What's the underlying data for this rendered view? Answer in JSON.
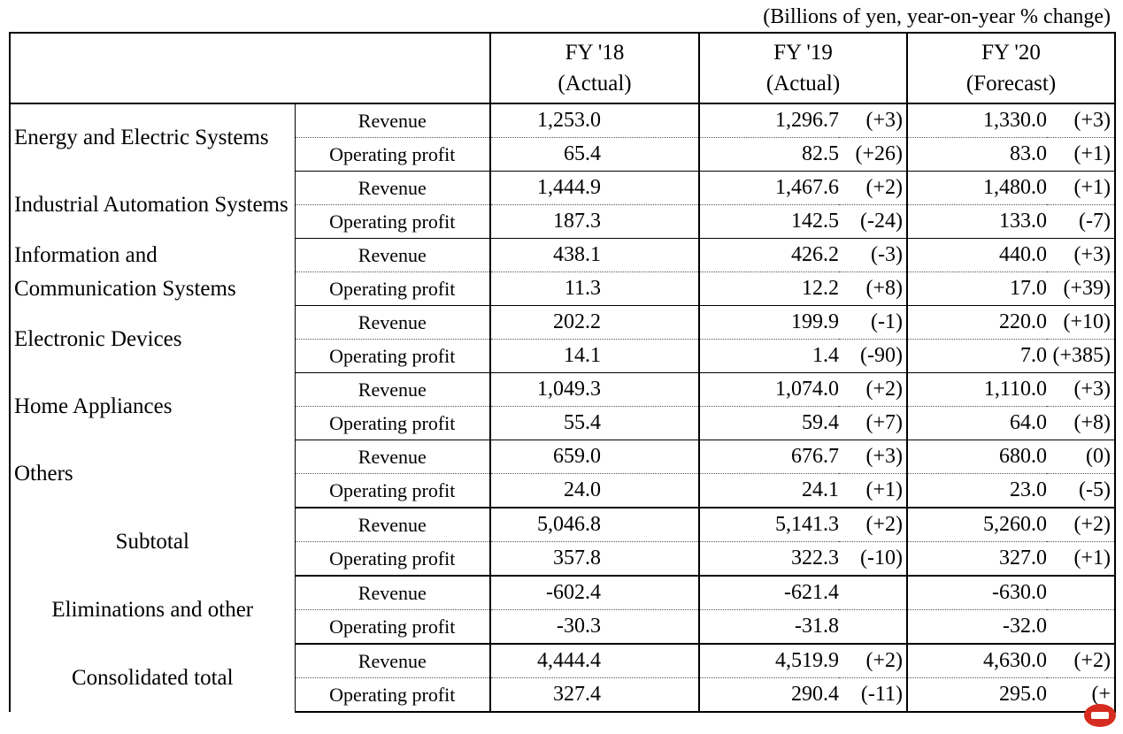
{
  "unit_note": "(Billions of yen, year-on-year % change)",
  "headers": [
    {
      "year": "FY '18",
      "kind": "(Actual)"
    },
    {
      "year": "FY '19",
      "kind": "(Actual)"
    },
    {
      "year": "FY '20",
      "kind": "(Forecast)"
    }
  ],
  "metrics": {
    "revenue": "Revenue",
    "op": "Operating profit"
  },
  "segments": [
    {
      "name": "Energy and Electric Systems",
      "rows": [
        {
          "fy18": "1,253.0",
          "fy19": "1,296.7",
          "chg19": "(+3)",
          "fy20": "1,330.0",
          "chg20": "(+3)"
        },
        {
          "fy18": "65.4",
          "fy19": "82.5",
          "chg19": "(+26)",
          "fy20": "83.0",
          "chg20": "(+1)"
        }
      ]
    },
    {
      "name": "Industrial Automation Systems",
      "rows": [
        {
          "fy18": "1,444.9",
          "fy19": "1,467.6",
          "chg19": "(+2)",
          "fy20": "1,480.0",
          "chg20": "(+1)"
        },
        {
          "fy18": "187.3",
          "fy19": "142.5",
          "chg19": "(-24)",
          "fy20": "133.0",
          "chg20": "(-7)"
        }
      ]
    },
    {
      "name": "Information and Communication Systems",
      "rows": [
        {
          "fy18": "438.1",
          "fy19": "426.2",
          "chg19": "(-3)",
          "fy20": "440.0",
          "chg20": "(+3)"
        },
        {
          "fy18": "11.3",
          "fy19": "12.2",
          "chg19": "(+8)",
          "fy20": "17.0",
          "chg20": "(+39)"
        }
      ]
    },
    {
      "name": "Electronic Devices",
      "rows": [
        {
          "fy18": "202.2",
          "fy19": "199.9",
          "chg19": "(-1)",
          "fy20": "220.0",
          "chg20": "(+10)"
        },
        {
          "fy18": "14.1",
          "fy19": "1.4",
          "chg19": "(-90)",
          "fy20": "7.0",
          "chg20": "(+385)"
        }
      ]
    },
    {
      "name": "Home Appliances",
      "rows": [
        {
          "fy18": "1,049.3",
          "fy19": "1,074.0",
          "chg19": "(+2)",
          "fy20": "1,110.0",
          "chg20": "(+3)"
        },
        {
          "fy18": "55.4",
          "fy19": "59.4",
          "chg19": "(+7)",
          "fy20": "64.0",
          "chg20": "(+8)"
        }
      ]
    },
    {
      "name": "Others",
      "rows": [
        {
          "fy18": "659.0",
          "fy19": "676.7",
          "chg19": "(+3)",
          "fy20": "680.0",
          "chg20": "(0)"
        },
        {
          "fy18": "24.0",
          "fy19": "24.1",
          "chg19": "(+1)",
          "fy20": "23.0",
          "chg20": "(-5)"
        }
      ]
    }
  ],
  "subtotal": {
    "name": "Subtotal",
    "rows": [
      {
        "fy18": "5,046.8",
        "fy19": "5,141.3",
        "chg19": "(+2)",
        "fy20": "5,260.0",
        "chg20": "(+2)"
      },
      {
        "fy18": "357.8",
        "fy19": "322.3",
        "chg19": "(-10)",
        "fy20": "327.0",
        "chg20": "(+1)"
      }
    ]
  },
  "eliminations": {
    "name": "Eliminations and other",
    "rows": [
      {
        "fy18": "-602.4",
        "fy19": "-621.4",
        "chg19": "",
        "fy20": "-630.0",
        "chg20": ""
      },
      {
        "fy18": "-30.3",
        "fy19": "-31.8",
        "chg19": "",
        "fy20": "-32.0",
        "chg20": ""
      }
    ]
  },
  "consolidated": {
    "name": "Consolidated total",
    "rows": [
      {
        "fy18": "4,444.4",
        "fy19": "4,519.9",
        "chg19": "(+2)",
        "fy20": "4,630.0",
        "chg20": "(+2)"
      },
      {
        "fy18": "327.4",
        "fy19": "290.4",
        "chg19": "(-11)",
        "fy20": "295.0",
        "chg20": "(+"
      }
    ]
  },
  "colors": {
    "logo_red": "#d62b1f"
  }
}
